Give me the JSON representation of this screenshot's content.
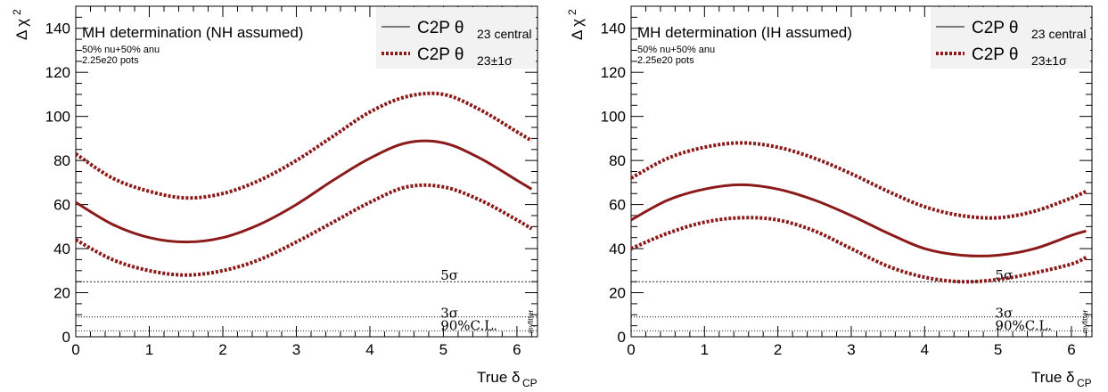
{
  "chart_data": [
    {
      "type": "line",
      "title": "MH determination (NH assumed)",
      "annotations": [
        "50% nu+50% anu",
        "2.25e20 pots"
      ],
      "xlabel": "True δ",
      "xlabel_sub": "CP",
      "ylabel": "Δ χ",
      "ylabel_sup": "2",
      "xlim": [
        0,
        6.28
      ],
      "ylim": [
        0,
        150
      ],
      "x_ticks": [
        0,
        1,
        2,
        3,
        4,
        5,
        6
      ],
      "y_ticks": [
        0,
        20,
        40,
        60,
        80,
        100,
        120,
        140
      ],
      "watermark": "myfitter",
      "legend": {
        "position": "top-right",
        "entries": [
          {
            "text": "C2P θ",
            "sub": "23 central",
            "style": "solid",
            "color": "#000000"
          },
          {
            "text": "C2P θ",
            "sub": "23±1σ",
            "style": "dotted",
            "color": "#8b1a1a"
          }
        ]
      },
      "series": [
        {
          "style": "solid",
          "color": "#8b1a1a",
          "x": [
            0,
            0.5,
            1,
            1.5,
            2,
            2.5,
            3,
            3.5,
            4,
            4.5,
            5,
            5.5,
            6,
            6.2
          ],
          "y": [
            61,
            51,
            45,
            43,
            45,
            51,
            60,
            71,
            81,
            88,
            88,
            81,
            71,
            67
          ]
        },
        {
          "style": "dotted",
          "color": "#8b1a1a",
          "x": [
            0,
            0.5,
            1,
            1.5,
            2,
            2.5,
            3,
            3.5,
            4,
            4.5,
            5,
            5.5,
            6,
            6.2
          ],
          "y": [
            83,
            72,
            66,
            63,
            65,
            71,
            80,
            91,
            102,
            109,
            110,
            103,
            93,
            89
          ]
        },
        {
          "style": "dotted",
          "color": "#8b1a1a",
          "x": [
            0,
            0.5,
            1,
            1.5,
            2,
            2.5,
            3,
            3.5,
            4,
            4.5,
            5,
            5.5,
            6,
            6.2
          ],
          "y": [
            44,
            35,
            30,
            28,
            30,
            35,
            43,
            52,
            61,
            68,
            68,
            62,
            53,
            49
          ]
        }
      ],
      "reference_lines": [
        {
          "y": 25,
          "label": "5σ"
        },
        {
          "y": 9,
          "label": "3σ"
        },
        {
          "y": 2.7,
          "label": "90%C.L."
        }
      ]
    },
    {
      "type": "line",
      "title": "MH determination (IH assumed)",
      "annotations": [
        "50% nu+50% anu",
        "2.25e20 pots"
      ],
      "xlabel": "True δ",
      "xlabel_sub": "CP",
      "ylabel": "Δ χ",
      "ylabel_sup": "2",
      "xlim": [
        0,
        6.28
      ],
      "ylim": [
        0,
        150
      ],
      "x_ticks": [
        0,
        1,
        2,
        3,
        4,
        5,
        6
      ],
      "y_ticks": [
        0,
        20,
        40,
        60,
        80,
        100,
        120,
        140
      ],
      "watermark": "myfitter",
      "legend": {
        "position": "top-right",
        "entries": [
          {
            "text": "C2P θ",
            "sub": "23 central",
            "style": "solid",
            "color": "#000000"
          },
          {
            "text": "C2P θ",
            "sub": "23±1σ",
            "style": "dotted",
            "color": "#8b1a1a"
          }
        ]
      },
      "series": [
        {
          "style": "solid",
          "color": "#8b1a1a",
          "x": [
            0,
            0.5,
            1,
            1.5,
            2,
            2.5,
            3,
            3.5,
            4,
            4.5,
            5,
            5.5,
            6,
            6.2
          ],
          "y": [
            53,
            62,
            67,
            69,
            67,
            62,
            55,
            47,
            40,
            37,
            37,
            40,
            46,
            48
          ]
        },
        {
          "style": "dotted",
          "color": "#8b1a1a",
          "x": [
            0,
            0.5,
            1,
            1.5,
            2,
            2.5,
            3,
            3.5,
            4,
            4.5,
            5,
            5.5,
            6,
            6.2
          ],
          "y": [
            72,
            81,
            86,
            88,
            86,
            81,
            74,
            66,
            59,
            55,
            54,
            57,
            63,
            66
          ]
        },
        {
          "style": "dotted",
          "color": "#8b1a1a",
          "x": [
            0,
            0.5,
            1,
            1.5,
            2,
            2.5,
            3,
            3.5,
            4,
            4.5,
            5,
            5.5,
            6,
            6.2
          ],
          "y": [
            40,
            47,
            52,
            54,
            53,
            48,
            40,
            32,
            27,
            25,
            26,
            29,
            33,
            36
          ]
        }
      ],
      "reference_lines": [
        {
          "y": 25,
          "label": "5σ"
        },
        {
          "y": 9,
          "label": "3σ"
        },
        {
          "y": 2.7,
          "label": "90%C.L."
        }
      ]
    }
  ]
}
